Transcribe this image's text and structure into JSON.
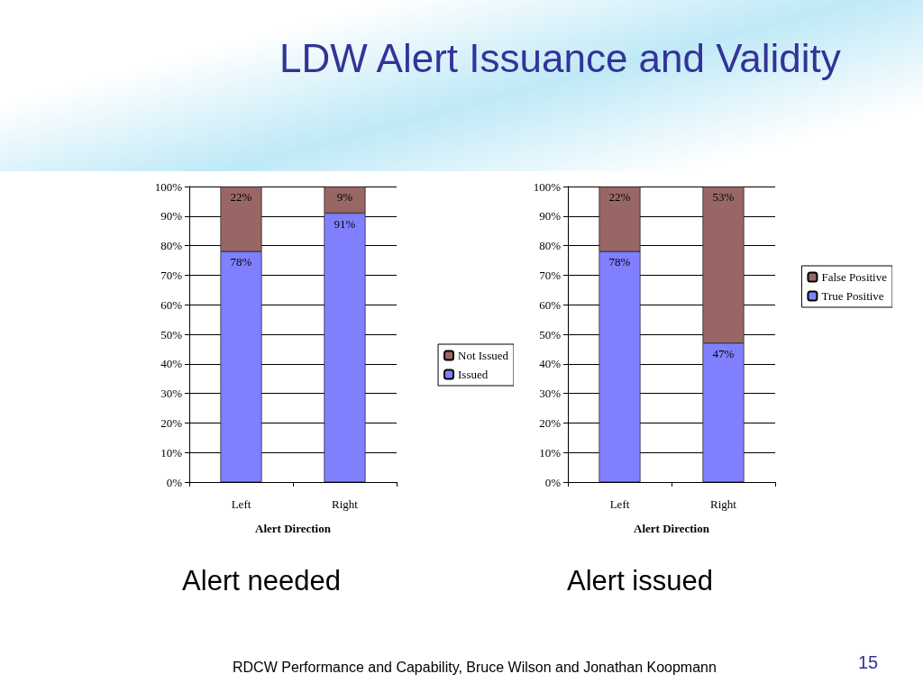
{
  "chart_data": [
    {
      "type": "bar",
      "title": "LDW Alert Issuance and Validity",
      "subtitle": "Alert needed",
      "xlabel": "Alert Direction",
      "categories": [
        "Left",
        "Right"
      ],
      "stacked": true,
      "ylim": [
        0,
        100
      ],
      "yticks": [
        {
          "value": 0,
          "label": "0%"
        },
        {
          "value": 10,
          "label": "10%"
        },
        {
          "value": 20,
          "label": "20%"
        },
        {
          "value": 30,
          "label": "30%"
        },
        {
          "value": 40,
          "label": "40%"
        },
        {
          "value": 50,
          "label": "50%"
        },
        {
          "value": 60,
          "label": "60%"
        },
        {
          "value": 70,
          "label": "70%"
        },
        {
          "value": 80,
          "label": "80%"
        },
        {
          "value": 90,
          "label": "90%"
        },
        {
          "value": 100,
          "label": "100%"
        }
      ],
      "grid": "y",
      "legend": "right",
      "series": [
        {
          "name": "Issued",
          "color": "#8080ff",
          "values": [
            78,
            91
          ],
          "value_labels": [
            "78%",
            "91%"
          ]
        },
        {
          "name": "Not Issued",
          "color": "#996666",
          "values": [
            22,
            9
          ],
          "value_labels": [
            "22%",
            "9%"
          ]
        }
      ]
    },
    {
      "type": "bar",
      "subtitle": "Alert issued",
      "xlabel": "Alert Direction",
      "categories": [
        "Left",
        "Right"
      ],
      "stacked": true,
      "ylim": [
        0,
        100
      ],
      "yticks": [
        {
          "value": 0,
          "label": "0%"
        },
        {
          "value": 10,
          "label": "10%"
        },
        {
          "value": 20,
          "label": "20%"
        },
        {
          "value": 30,
          "label": "30%"
        },
        {
          "value": 40,
          "label": "40%"
        },
        {
          "value": 50,
          "label": "50%"
        },
        {
          "value": 60,
          "label": "60%"
        },
        {
          "value": 70,
          "label": "70%"
        },
        {
          "value": 80,
          "label": "80%"
        },
        {
          "value": 90,
          "label": "90%"
        },
        {
          "value": 100,
          "label": "100%"
        }
      ],
      "grid": "y",
      "legend": "top right",
      "series": [
        {
          "name": "True Positive",
          "color": "#8080ff",
          "values": [
            78,
            47
          ],
          "value_labels": [
            "78%",
            "47%"
          ]
        },
        {
          "name": "False Positive",
          "color": "#996666",
          "values": [
            22,
            53
          ],
          "value_labels": [
            "22%",
            "53%"
          ]
        }
      ],
      "annotations": [
        "RDCW Performance and Capability, Bruce Wilson and Jonathan Koopmann",
        "15"
      ]
    }
  ]
}
